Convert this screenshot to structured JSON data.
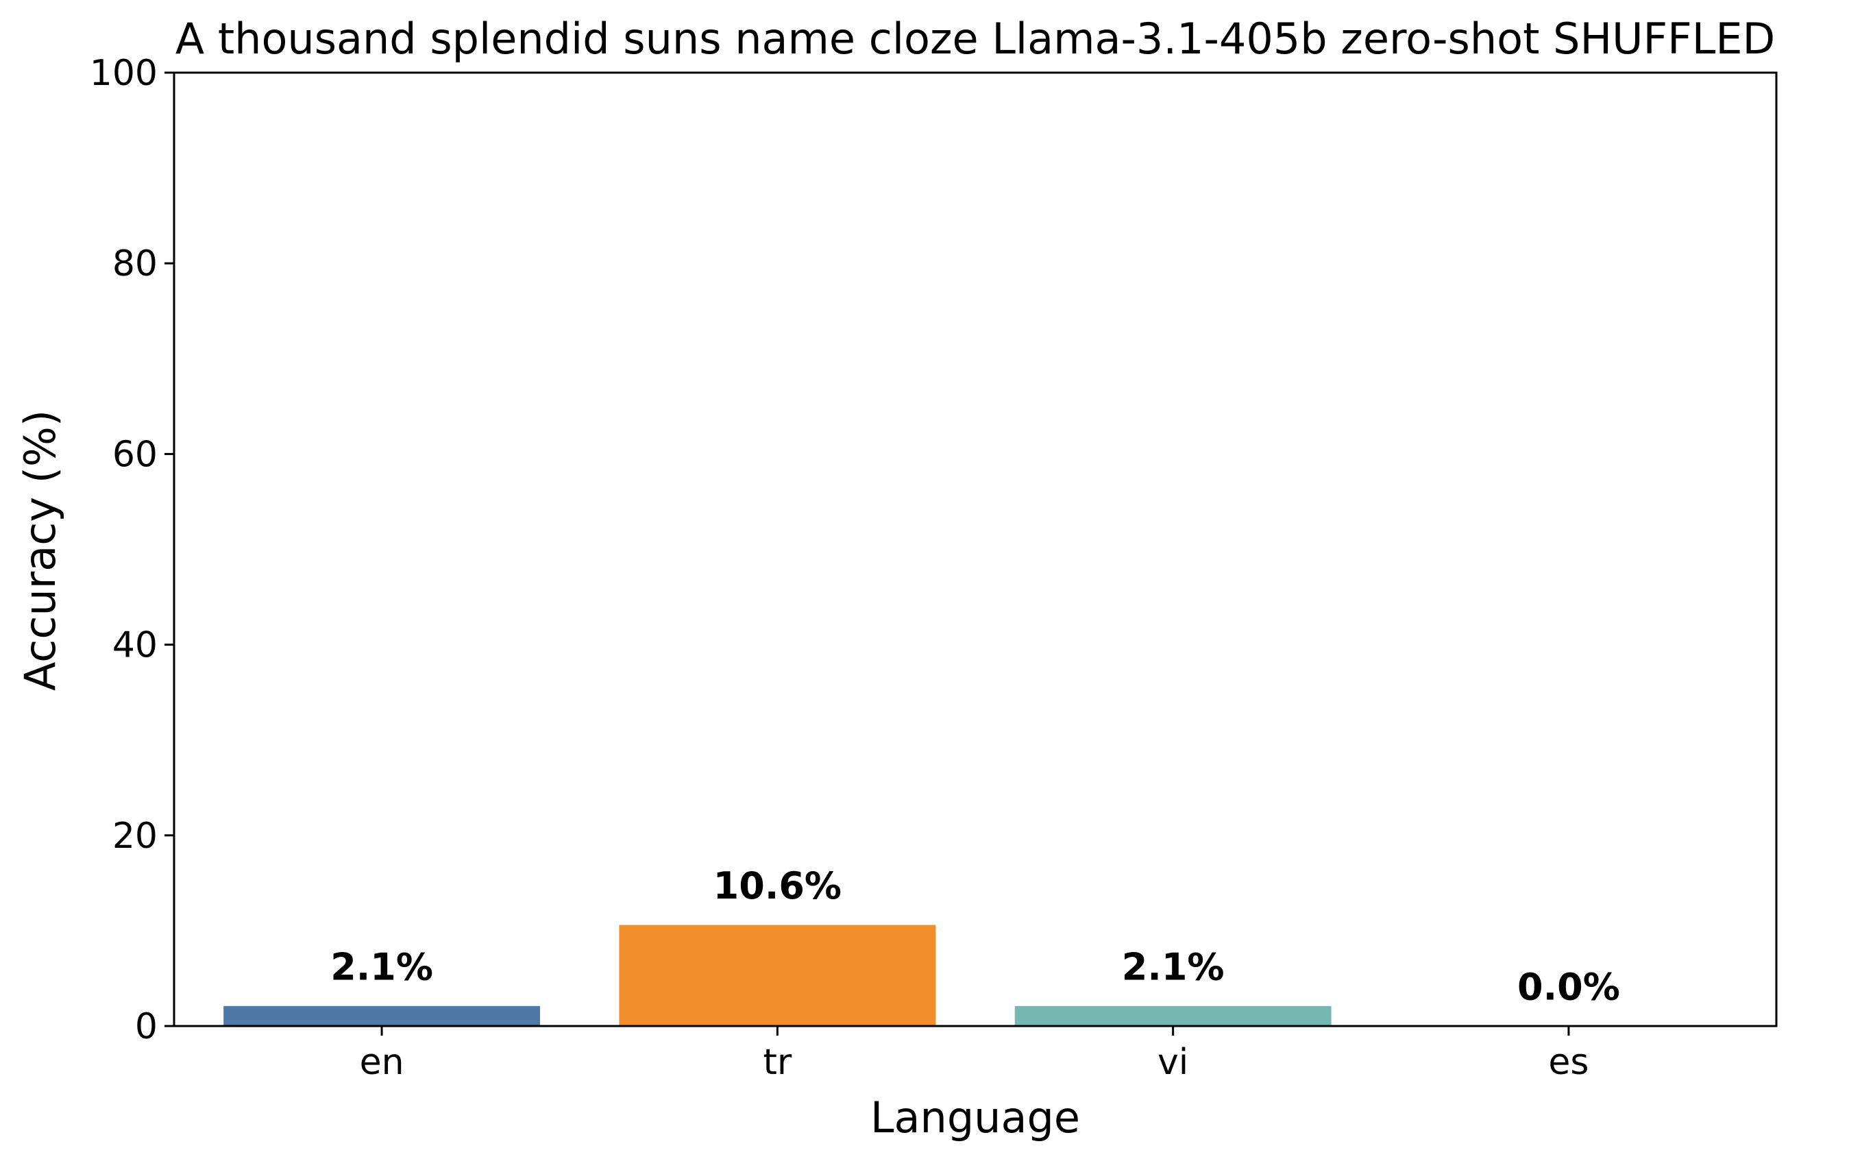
{
  "chart_data": {
    "type": "bar",
    "title": "A thousand splendid suns name cloze Llama-3.1-405b zero-shot SHUFFLED",
    "xlabel": "Language",
    "ylabel": "Accuracy (%)",
    "categories": [
      "en",
      "tr",
      "vi",
      "es"
    ],
    "values": [
      2.1,
      10.6,
      2.1,
      0.0
    ],
    "value_labels": [
      "2.1%",
      "10.6%",
      "2.1%",
      "0.0%"
    ],
    "colors": [
      "#4e79a7",
      "#f28e2b",
      "#76b7b2",
      "#e15759"
    ],
    "ylim": [
      0,
      100
    ],
    "yticks": [
      0,
      20,
      40,
      60,
      80,
      100
    ],
    "ytick_labels": [
      "0",
      "20",
      "40",
      "60",
      "80",
      "100"
    ],
    "grid": false,
    "legend": "none"
  }
}
